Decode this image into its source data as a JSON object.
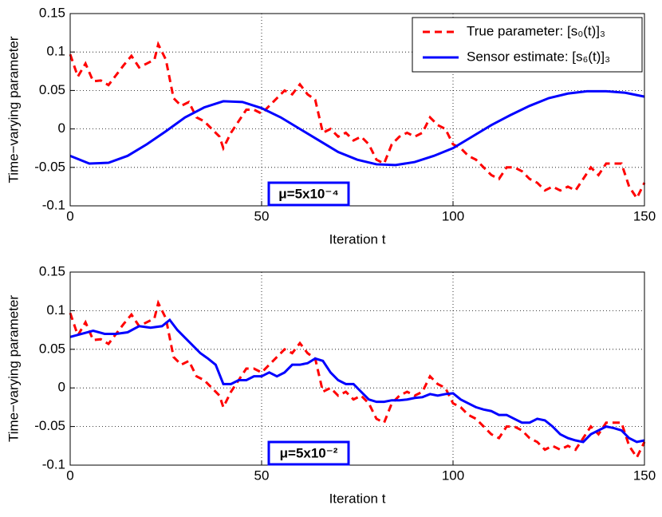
{
  "chart_data": [
    {
      "type": "line",
      "xlabel": "Iteration t",
      "ylabel": "Time−varying parameter",
      "annotation": "μ=5x10⁻⁴",
      "xlim": [
        0,
        150
      ],
      "ylim": [
        -0.1,
        0.15
      ],
      "xticks": [
        0,
        50,
        100,
        150
      ],
      "yticks": [
        0.15,
        0.1,
        0.05,
        0,
        -0.05,
        -0.1
      ],
      "grid": true,
      "legend": "upper right",
      "series": [
        {
          "name": "True parameter: [s₀(t)]₃",
          "color": "#ff0000",
          "style": "dashed",
          "x": [
            0,
            2,
            4,
            6,
            8,
            10,
            12,
            14,
            16,
            18,
            20,
            22,
            23,
            25,
            27,
            29,
            31,
            33,
            35,
            37,
            39,
            40,
            42,
            44,
            46,
            48,
            50,
            52,
            54,
            56,
            58,
            60,
            62,
            64,
            66,
            68,
            70,
            72,
            74,
            76,
            78,
            80,
            82,
            84,
            86,
            88,
            90,
            92,
            94,
            96,
            98,
            100,
            102,
            104,
            106,
            108,
            110,
            112,
            114,
            116,
            118,
            120,
            122,
            124,
            126,
            128,
            130,
            132,
            134,
            136,
            138,
            140,
            142,
            144,
            146,
            148,
            150
          ],
          "values": [
            0.097,
            0.068,
            0.085,
            0.062,
            0.063,
            0.057,
            0.07,
            0.083,
            0.095,
            0.08,
            0.085,
            0.09,
            0.11,
            0.09,
            0.04,
            0.03,
            0.035,
            0.015,
            0.01,
            0,
            -0.01,
            -0.025,
            -0.005,
            0.01,
            0.025,
            0.025,
            0.02,
            0.03,
            0.04,
            0.05,
            0.045,
            0.058,
            0.045,
            0.038,
            -0.005,
            0,
            -0.01,
            -0.005,
            -0.015,
            -0.01,
            -0.02,
            -0.04,
            -0.045,
            -0.02,
            -0.01,
            -0.005,
            -0.01,
            -0.005,
            0.015,
            0.005,
            0,
            -0.02,
            -0.025,
            -0.035,
            -0.04,
            -0.05,
            -0.06,
            -0.065,
            -0.05,
            -0.05,
            -0.055,
            -0.065,
            -0.07,
            -0.08,
            -0.075,
            -0.08,
            -0.075,
            -0.08,
            -0.065,
            -0.05,
            -0.06,
            -0.045,
            -0.045,
            -0.045,
            -0.075,
            -0.09,
            -0.07
          ]
        },
        {
          "name": "Sensor estimate: [s₆(t)]₃",
          "color": "#0000ff",
          "style": "solid",
          "x": [
            0,
            5,
            10,
            15,
            20,
            25,
            30,
            35,
            40,
            45,
            50,
            55,
            60,
            65,
            70,
            75,
            80,
            85,
            90,
            95,
            100,
            105,
            110,
            115,
            120,
            125,
            130,
            135,
            140,
            145,
            150
          ],
          "values": [
            -0.035,
            -0.045,
            -0.044,
            -0.035,
            -0.02,
            -0.003,
            0.015,
            0.028,
            0.036,
            0.035,
            0.027,
            0.015,
            0,
            -0.015,
            -0.03,
            -0.04,
            -0.046,
            -0.047,
            -0.043,
            -0.035,
            -0.025,
            -0.01,
            0.005,
            0.018,
            0.03,
            0.04,
            0.046,
            0.049,
            0.049,
            0.047,
            0.042
          ]
        }
      ]
    },
    {
      "type": "line",
      "xlabel": "Iteration t",
      "ylabel": "Time−varying parameter",
      "annotation": "μ=5x10⁻²",
      "xlim": [
        0,
        150
      ],
      "ylim": [
        -0.1,
        0.15
      ],
      "xticks": [
        0,
        50,
        100,
        150
      ],
      "yticks": [
        0.15,
        0.1,
        0.05,
        0,
        -0.05,
        -0.1
      ],
      "grid": true,
      "series": [
        {
          "color": "#ff0000",
          "style": "dashed",
          "x": [
            0,
            2,
            4,
            6,
            8,
            10,
            12,
            14,
            16,
            18,
            20,
            22,
            23,
            25,
            27,
            29,
            31,
            33,
            35,
            37,
            39,
            40,
            42,
            44,
            46,
            48,
            50,
            52,
            54,
            56,
            58,
            60,
            62,
            64,
            66,
            68,
            70,
            72,
            74,
            76,
            78,
            80,
            82,
            84,
            86,
            88,
            90,
            92,
            94,
            96,
            98,
            100,
            102,
            104,
            106,
            108,
            110,
            112,
            114,
            116,
            118,
            120,
            122,
            124,
            126,
            128,
            130,
            132,
            134,
            136,
            138,
            140,
            142,
            144,
            146,
            148,
            150
          ],
          "values": [
            0.097,
            0.068,
            0.085,
            0.062,
            0.063,
            0.057,
            0.07,
            0.083,
            0.095,
            0.08,
            0.085,
            0.09,
            0.11,
            0.09,
            0.04,
            0.03,
            0.035,
            0.015,
            0.01,
            0,
            -0.01,
            -0.025,
            -0.005,
            0.01,
            0.025,
            0.025,
            0.02,
            0.03,
            0.04,
            0.05,
            0.045,
            0.058,
            0.045,
            0.038,
            -0.005,
            0,
            -0.01,
            -0.005,
            -0.015,
            -0.01,
            -0.02,
            -0.04,
            -0.045,
            -0.02,
            -0.01,
            -0.005,
            -0.01,
            -0.005,
            0.015,
            0.005,
            0,
            -0.02,
            -0.025,
            -0.035,
            -0.04,
            -0.05,
            -0.06,
            -0.065,
            -0.05,
            -0.05,
            -0.055,
            -0.065,
            -0.07,
            -0.08,
            -0.075,
            -0.08,
            -0.075,
            -0.08,
            -0.065,
            -0.05,
            -0.06,
            -0.045,
            -0.045,
            -0.045,
            -0.075,
            -0.09,
            -0.07
          ]
        },
        {
          "color": "#0000ff",
          "style": "solid",
          "x": [
            0,
            3,
            6,
            9,
            12,
            15,
            18,
            21,
            24,
            26,
            28,
            30,
            32,
            34,
            36,
            38,
            40,
            42,
            44,
            46,
            48,
            50,
            52,
            54,
            56,
            58,
            60,
            62,
            64,
            66,
            68,
            70,
            72,
            74,
            76,
            78,
            80,
            82,
            84,
            86,
            88,
            90,
            92,
            94,
            96,
            98,
            100,
            102,
            104,
            106,
            108,
            110,
            112,
            114,
            116,
            118,
            120,
            122,
            124,
            126,
            128,
            130,
            132,
            134,
            136,
            138,
            140,
            142,
            144,
            146,
            148,
            150
          ],
          "values": [
            0.066,
            0.07,
            0.074,
            0.07,
            0.07,
            0.072,
            0.08,
            0.078,
            0.08,
            0.088,
            0.075,
            0.065,
            0.055,
            0.045,
            0.038,
            0.03,
            0.005,
            0.005,
            0.01,
            0.01,
            0.015,
            0.015,
            0.02,
            0.015,
            0.02,
            0.03,
            0.03,
            0.032,
            0.038,
            0.035,
            0.02,
            0.01,
            0.005,
            0.005,
            -0.005,
            -0.015,
            -0.018,
            -0.018,
            -0.016,
            -0.016,
            -0.015,
            -0.013,
            -0.012,
            -0.008,
            -0.01,
            -0.008,
            -0.007,
            -0.015,
            -0.02,
            -0.025,
            -0.028,
            -0.03,
            -0.035,
            -0.035,
            -0.04,
            -0.045,
            -0.045,
            -0.04,
            -0.042,
            -0.05,
            -0.06,
            -0.065,
            -0.068,
            -0.07,
            -0.06,
            -0.055,
            -0.05,
            -0.052,
            -0.055,
            -0.065,
            -0.07,
            -0.068
          ]
        }
      ]
    }
  ]
}
